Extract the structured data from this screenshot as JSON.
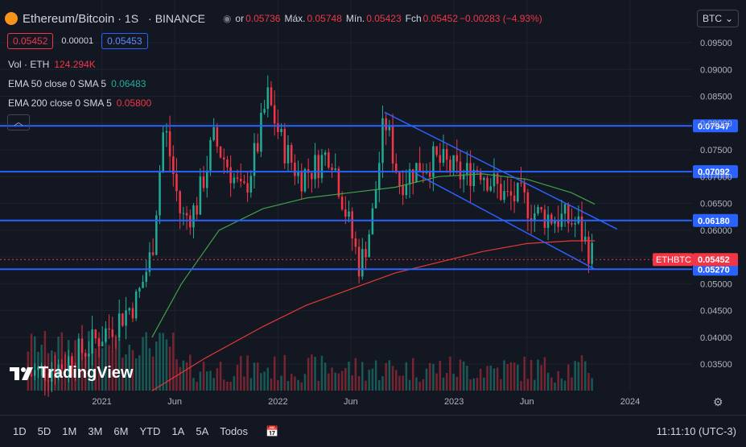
{
  "header": {
    "symbol": "Ethereum/Bitcoin",
    "interval": "1S",
    "exchange": "BINANCE",
    "ohlc": [
      {
        "k": "or",
        "v": "0.05736"
      },
      {
        "k": "Máx.",
        "v": "0.05748"
      },
      {
        "k": "Mín.",
        "v": "0.05423"
      },
      {
        "k": "Fch",
        "v": "0.05452"
      },
      {
        "k": "",
        "v": "−0.00283 (−4.93%)"
      }
    ]
  },
  "quote": {
    "bid": "0.05452",
    "spread": "0.00001",
    "ask": "0.05453"
  },
  "legend": [
    {
      "label": "Vol · ETH",
      "value": "124.294K",
      "color": "#f23645"
    },
    {
      "label": "EMA 50 close 0 SMA 5",
      "value": "0.06483",
      "color": "#22ab94"
    },
    {
      "label": "EMA 200 close 0 SMA 5",
      "value": "0.05800",
      "color": "#f23645"
    }
  ],
  "currency_select": "BTC",
  "logo_text": "TradingView",
  "timeframes": [
    "1D",
    "5D",
    "1M",
    "3M",
    "6M",
    "YTD",
    "1A",
    "5A",
    "Todos"
  ],
  "clock": "11:11:10 (UTC-3)",
  "colors": {
    "up": "#22ab94",
    "down": "#f23645",
    "hline": "#2962ff",
    "ema50": "#43a047",
    "ema200": "#e53935"
  },
  "chart_data": {
    "type": "candlestick",
    "title": "Ethereum/Bitcoin · 1S · BINANCE",
    "ylim": [
      0.03,
      0.1
    ],
    "y_ticks": [
      0.035,
      0.04,
      0.045,
      0.05,
      0.055,
      0.06,
      0.065,
      0.07,
      0.075,
      0.08,
      0.085,
      0.09,
      0.095
    ],
    "y_tick_labels": [
      "0.03500",
      "0.04000",
      "0.04500",
      "0.05000",
      "0.05500",
      "0.06000",
      "0.06500",
      "0.07000",
      "0.07500",
      "0.08000",
      "0.08500",
      "0.09000",
      "0.09500"
    ],
    "x_tick_labels": [
      "2021",
      "Jun",
      "2022",
      "Jun",
      "2023",
      "Jun",
      "2024"
    ],
    "x_tick_dates": [
      "2021-01-01",
      "2021-06-01",
      "2022-01-01",
      "2022-06-01",
      "2023-01-01",
      "2023-06-01",
      "2024-01-01"
    ],
    "x_range": [
      "2020-08-01",
      "2024-06-01"
    ],
    "close_path": [
      [
        "2020-08-01",
        0.033
      ],
      [
        "2020-10-01",
        0.0345
      ],
      [
        "2020-12-01",
        0.038
      ],
      [
        "2021-02-01",
        0.043
      ],
      [
        "2021-03-15",
        0.047
      ],
      [
        "2021-04-15",
        0.056
      ],
      [
        "2021-05-10",
        0.08
      ],
      [
        "2021-06-15",
        0.062
      ],
      [
        "2021-07-15",
        0.064
      ],
      [
        "2021-08-20",
        0.077
      ],
      [
        "2021-09-20",
        0.072
      ],
      [
        "2021-10-20",
        0.066
      ],
      [
        "2021-11-20",
        0.076
      ],
      [
        "2021-12-10",
        0.085
      ],
      [
        "2022-01-10",
        0.076
      ],
      [
        "2022-02-15",
        0.07
      ],
      [
        "2022-03-20",
        0.072
      ],
      [
        "2022-04-20",
        0.075
      ],
      [
        "2022-05-20",
        0.064
      ],
      [
        "2022-06-20",
        0.053
      ],
      [
        "2022-07-15",
        0.062
      ],
      [
        "2022-08-10",
        0.081
      ],
      [
        "2022-09-10",
        0.069
      ],
      [
        "2022-10-20",
        0.072
      ],
      [
        "2022-11-20",
        0.073
      ],
      [
        "2022-12-20",
        0.072
      ],
      [
        "2023-01-20",
        0.07
      ],
      [
        "2023-02-20",
        0.072
      ],
      [
        "2023-03-20",
        0.069
      ],
      [
        "2023-04-20",
        0.066
      ],
      [
        "2023-05-20",
        0.066
      ],
      [
        "2023-06-20",
        0.063
      ],
      [
        "2023-07-20",
        0.0625
      ],
      [
        "2023-08-20",
        0.062
      ],
      [
        "2023-09-15",
        0.061
      ],
      [
        "2023-10-01",
        0.0575
      ],
      [
        "2023-10-20",
        0.05452
      ]
    ],
    "ema50": [
      [
        "2021-04-15",
        0.04
      ],
      [
        "2021-06-15",
        0.05
      ],
      [
        "2021-09-01",
        0.06
      ],
      [
        "2021-12-01",
        0.064
      ],
      [
        "2022-03-01",
        0.066
      ],
      [
        "2022-06-01",
        0.067
      ],
      [
        "2022-09-01",
        0.068
      ],
      [
        "2022-12-01",
        0.07
      ],
      [
        "2023-03-01",
        0.0705
      ],
      [
        "2023-06-01",
        0.0695
      ],
      [
        "2023-09-01",
        0.067
      ],
      [
        "2023-10-20",
        0.06483
      ]
    ],
    "ema200": [
      [
        "2021-04-15",
        0.03
      ],
      [
        "2021-08-01",
        0.036
      ],
      [
        "2021-12-01",
        0.042
      ],
      [
        "2022-03-01",
        0.046
      ],
      [
        "2022-06-01",
        0.049
      ],
      [
        "2022-09-01",
        0.052
      ],
      [
        "2022-12-01",
        0.054
      ],
      [
        "2023-03-01",
        0.056
      ],
      [
        "2023-06-01",
        0.0575
      ],
      [
        "2023-09-01",
        0.058
      ],
      [
        "2023-10-20",
        0.058
      ]
    ],
    "horizontal_levels": [
      {
        "value": 0.07947,
        "label": "0.07947"
      },
      {
        "value": 0.07092,
        "label": "0.07092"
      },
      {
        "value": 0.0618,
        "label": "0.06180"
      },
      {
        "value": 0.0527,
        "label": "0.05270"
      }
    ],
    "channel_lines": [
      {
        "from": [
          "2022-08-10",
          0.082
        ],
        "to": [
          "2023-12-05",
          0.0602
        ]
      },
      {
        "from": [
          "2022-10-15",
          0.0705
        ],
        "to": [
          "2023-10-20",
          0.0527
        ]
      }
    ],
    "last_price": {
      "label": "ETHBTC",
      "value": 0.05452,
      "text": "0.05452"
    },
    "volume_label": "Vol · ETH"
  }
}
